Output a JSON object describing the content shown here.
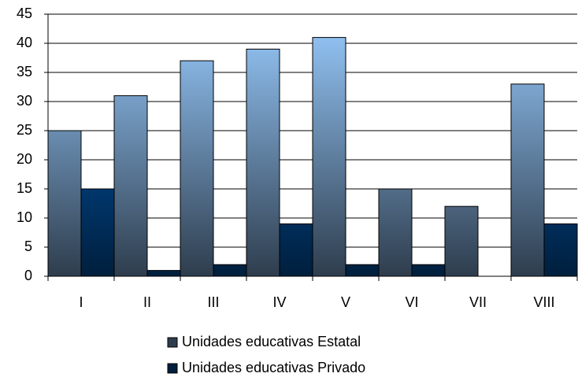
{
  "chart_data": {
    "type": "bar",
    "categories": [
      "I",
      "II",
      "III",
      "IV",
      "V",
      "VI",
      "VII",
      "VIII"
    ],
    "series": [
      {
        "name": "Unidades educativas Estatal",
        "color": "#99ccff",
        "values": [
          25,
          31,
          37,
          39,
          41,
          15,
          12,
          33
        ]
      },
      {
        "name": "Unidades educativas Privado",
        "color": "#0066cc",
        "values": [
          15,
          1,
          2,
          9,
          2,
          2,
          0,
          9
        ]
      }
    ],
    "ylim": [
      0,
      45
    ],
    "yticks": [
      0,
      5,
      10,
      15,
      20,
      25,
      30,
      35,
      40,
      45
    ],
    "grid": true,
    "legend": "bottom"
  }
}
